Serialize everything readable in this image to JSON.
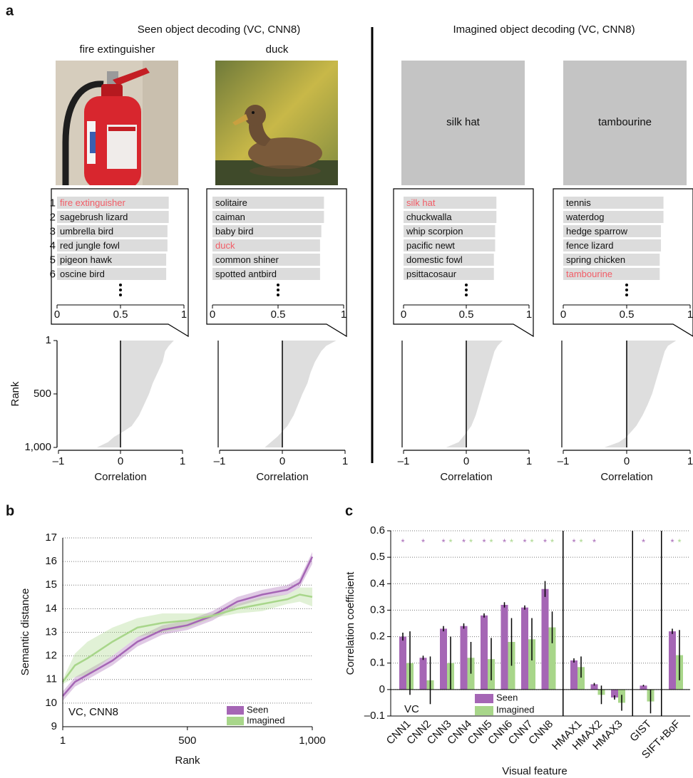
{
  "figure": {
    "panel_labels": [
      "a",
      "b",
      "c"
    ],
    "seen_title": "Seen object decoding (VC, CNN8)",
    "imagined_title": "Imagined object decoding (VC, CNN8)"
  },
  "chart_data": [
    {
      "type": "hbar",
      "title": "fire extinguisher",
      "cue": "photo",
      "ranks": [
        1,
        2,
        3,
        4,
        5,
        6
      ],
      "categories": [
        "fire extinguisher",
        "sagebrush lizard",
        "umbrella bird",
        "red jungle fowl",
        "pigeon hawk",
        "oscine bird"
      ],
      "values": [
        0.88,
        0.88,
        0.87,
        0.87,
        0.86,
        0.86
      ],
      "highlight": 0,
      "highlight_color": "#f25c66",
      "color": "#dcdcdc",
      "xlim": [
        0,
        1
      ],
      "xticks": [
        0,
        0.5,
        1
      ]
    },
    {
      "type": "hbar",
      "title": "duck",
      "cue": "photo",
      "categories": [
        "solitaire",
        "caiman",
        "baby bird",
        "duck",
        "common shiner",
        "spotted antbird"
      ],
      "values": [
        0.85,
        0.85,
        0.83,
        0.82,
        0.82,
        0.82
      ],
      "highlight": 3,
      "highlight_color": "#f25c66",
      "color": "#dcdcdc",
      "xlim": [
        0,
        1
      ],
      "xticks": [
        0,
        0.5,
        1
      ]
    },
    {
      "type": "hbar",
      "title": "silk hat",
      "cue": "text",
      "categories": [
        "silk hat",
        "chuckwalla",
        "whip scorpion",
        "pacific newt",
        "domestic fowl",
        "psittacosaur"
      ],
      "values": [
        0.74,
        0.74,
        0.73,
        0.73,
        0.72,
        0.72
      ],
      "highlight": 0,
      "highlight_color": "#f25c66",
      "color": "#dcdcdc",
      "xlim": [
        0,
        1
      ],
      "xticks": [
        0,
        0.5,
        1
      ]
    },
    {
      "type": "hbar",
      "title": "tambourine",
      "cue": "text",
      "categories": [
        "tennis",
        "waterdog",
        "hedge sparrow",
        "fence lizard",
        "spring chicken",
        "tambourine"
      ],
      "values": [
        0.79,
        0.79,
        0.77,
        0.77,
        0.76,
        0.76
      ],
      "highlight": 5,
      "highlight_color": "#f25c66",
      "color": "#dcdcdc",
      "xlim": [
        0,
        1
      ],
      "xticks": [
        0,
        0.5,
        1
      ]
    },
    {
      "type": "area",
      "xlabel": "Correlation",
      "ylabel": "Rank",
      "color": "#dedede",
      "x": [
        1,
        50,
        100,
        200,
        300,
        400,
        500,
        600,
        700,
        800,
        850,
        900,
        950,
        1000
      ],
      "values": [
        0.86,
        0.78,
        0.72,
        0.68,
        0.6,
        0.52,
        0.46,
        0.38,
        0.3,
        0.18,
        0.05,
        -0.1,
        -0.2,
        -0.38
      ],
      "xlim": [
        -1,
        1
      ],
      "xticks": [
        {
          "value": -1,
          "label": "–1"
        },
        0,
        1
      ],
      "ylim": [
        1,
        1000
      ],
      "yticks": [
        1,
        500,
        {
          "value": 1000,
          "label": "1,000"
        }
      ]
    },
    {
      "type": "area",
      "xlabel": "Correlation",
      "color": "#dedede",
      "x": [
        1,
        50,
        100,
        200,
        300,
        400,
        500,
        600,
        700,
        800,
        900,
        950,
        1000
      ],
      "values": [
        0.86,
        0.7,
        0.62,
        0.52,
        0.45,
        0.4,
        0.32,
        0.25,
        0.18,
        0.08,
        -0.08,
        -0.18,
        -0.28
      ],
      "xlim": [
        -1,
        1
      ],
      "xticks": [
        {
          "value": -1,
          "label": "–1"
        },
        0,
        1
      ],
      "ylim": [
        1,
        1000
      ]
    },
    {
      "type": "area",
      "xlabel": "Correlation",
      "color": "#dedede",
      "x": [
        1,
        50,
        100,
        200,
        300,
        400,
        500,
        600,
        700,
        800,
        900,
        950,
        1000
      ],
      "values": [
        0.58,
        0.5,
        0.45,
        0.4,
        0.35,
        0.3,
        0.25,
        0.2,
        0.15,
        0.08,
        -0.05,
        -0.12,
        -0.32
      ],
      "xlim": [
        -1,
        1
      ],
      "xticks": [
        {
          "value": -1,
          "label": "–1"
        },
        0,
        1
      ],
      "ylim": [
        1,
        1000
      ]
    },
    {
      "type": "area",
      "xlabel": "Correlation",
      "color": "#dedede",
      "x": [
        1,
        50,
        100,
        200,
        300,
        400,
        500,
        600,
        700,
        800,
        900,
        950,
        1000
      ],
      "values": [
        0.78,
        0.65,
        0.6,
        0.55,
        0.5,
        0.45,
        0.4,
        0.33,
        0.25,
        0.15,
        0.0,
        -0.12,
        -0.35
      ],
      "xlim": [
        -1,
        1
      ],
      "xticks": [
        {
          "value": -1,
          "label": "–1"
        },
        0,
        1
      ],
      "ylim": [
        1,
        1000
      ]
    },
    {
      "type": "line",
      "annotation": "VC, CNN8",
      "xlabel": "Rank",
      "ylabel": "Semantic distance",
      "x": [
        1,
        50,
        100,
        200,
        300,
        400,
        500,
        600,
        700,
        800,
        900,
        950,
        1000
      ],
      "series": [
        {
          "name": "Seen",
          "color": "#a566b5",
          "values": [
            10.3,
            10.9,
            11.2,
            11.8,
            12.6,
            13.1,
            13.3,
            13.7,
            14.3,
            14.6,
            14.8,
            15.1,
            16.2
          ],
          "lower": [
            10.1,
            10.7,
            11.0,
            11.6,
            12.4,
            12.9,
            13.1,
            13.5,
            14.1,
            14.4,
            14.6,
            14.9,
            15.9
          ],
          "upper": [
            10.5,
            11.1,
            11.4,
            12.0,
            12.8,
            13.3,
            13.5,
            13.9,
            14.5,
            14.8,
            15.0,
            15.3,
            16.4
          ]
        },
        {
          "name": "Imagined",
          "color": "#a8d68a",
          "values": [
            10.9,
            11.6,
            11.9,
            12.6,
            13.2,
            13.4,
            13.5,
            13.7,
            14.0,
            14.2,
            14.4,
            14.6,
            14.5
          ],
          "lower": [
            10.8,
            11.1,
            11.2,
            12.0,
            12.8,
            13.0,
            13.2,
            13.6,
            13.8,
            13.9,
            14.2,
            14.3,
            14.1
          ],
          "upper": [
            11.0,
            12.1,
            12.6,
            13.2,
            13.6,
            13.8,
            13.8,
            13.8,
            14.2,
            14.5,
            14.6,
            14.9,
            14.9
          ]
        }
      ],
      "xlim": [
        1,
        1000
      ],
      "xticks": [
        1,
        500,
        {
          "value": 1000,
          "label": "1,000"
        }
      ],
      "ylim": [
        9,
        17
      ],
      "yticks": [
        9,
        10,
        11,
        12,
        13,
        14,
        15,
        16,
        17
      ],
      "grid": true,
      "legend": "lower right"
    },
    {
      "type": "bar",
      "annotation": "VC",
      "xlabel": "Visual feature",
      "ylabel": "Correlation coefficient",
      "marker": "*",
      "categories": [
        "CNN1",
        "CNN2",
        "CNN3",
        "CNN4",
        "CNN5",
        "CNN6",
        "CNN7",
        "CNN8",
        "HMAX1",
        "HMAX2",
        "HMAX3",
        "GIST",
        "SIFT+BoF"
      ],
      "series": [
        {
          "name": "Seen",
          "color": "#a566b5",
          "values": [
            0.2,
            0.12,
            0.23,
            0.24,
            0.28,
            0.32,
            0.31,
            0.38,
            0.11,
            0.02,
            -0.03,
            0.015,
            0.22
          ],
          "errors": [
            0.015,
            0.008,
            0.01,
            0.01,
            0.008,
            0.01,
            0.008,
            0.03,
            0.008,
            0.005,
            0.008,
            0.003,
            0.01
          ],
          "significant": [
            true,
            true,
            true,
            true,
            true,
            true,
            true,
            true,
            true,
            true,
            false,
            true,
            true
          ]
        },
        {
          "name": "Imagined",
          "color": "#a8d68a",
          "values": [
            0.1,
            0.035,
            0.1,
            0.12,
            0.115,
            0.18,
            0.19,
            0.235,
            0.085,
            -0.02,
            -0.05,
            -0.045,
            0.13
          ],
          "errors": [
            0.12,
            0.09,
            0.1,
            0.06,
            0.08,
            0.09,
            0.08,
            0.06,
            0.04,
            0.035,
            0.03,
            0.045,
            0.095
          ],
          "significant": [
            false,
            false,
            true,
            true,
            true,
            true,
            true,
            true,
            true,
            false,
            false,
            false,
            true
          ]
        }
      ],
      "ylim": [
        -0.1,
        0.6
      ],
      "yticks": [
        {
          "value": -0.1,
          "label": "–0.1"
        },
        0,
        0.1,
        0.2,
        0.3,
        0.4,
        0.5,
        0.6
      ],
      "grid": true,
      "legend": "lower center"
    }
  ]
}
